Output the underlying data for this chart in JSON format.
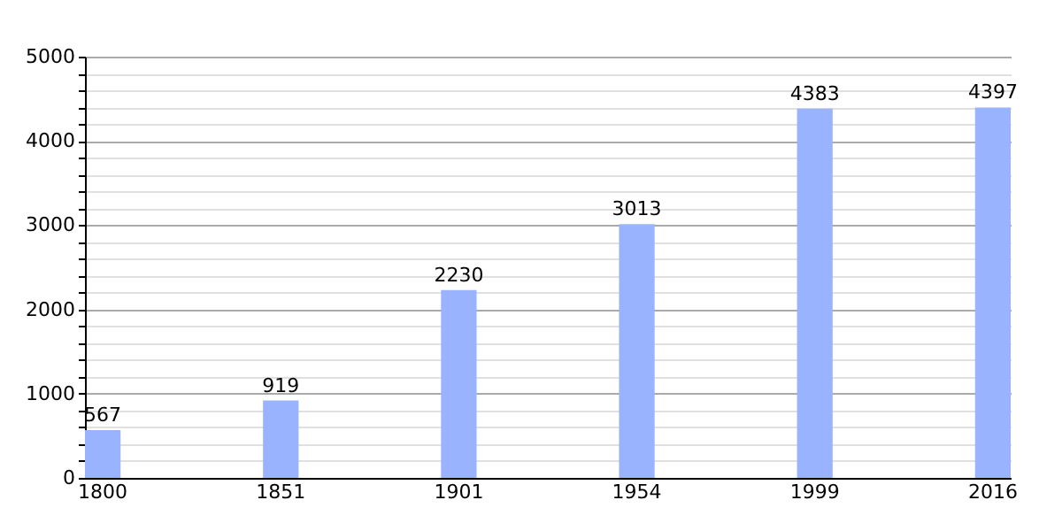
{
  "chart_data": {
    "type": "bar",
    "categories": [
      "1800",
      "1851",
      "1901",
      "1954",
      "1999",
      "2016"
    ],
    "values": [
      567,
      919,
      2230,
      3013,
      4383,
      4397
    ],
    "color": "#99b3ff",
    "ylim": [
      0,
      5000
    ],
    "yticks": [
      0,
      {
        "value": 200,
        "label": null
      },
      {
        "value": 400,
        "label": null
      },
      {
        "value": 600,
        "label": null
      },
      {
        "value": 800,
        "label": null
      },
      1000,
      {
        "value": 1200,
        "label": null
      },
      {
        "value": 1400,
        "label": null
      },
      {
        "value": 1600,
        "label": null
      },
      {
        "value": 1800,
        "label": null
      },
      2000,
      {
        "value": 2200,
        "label": null
      },
      {
        "value": 2400,
        "label": null
      },
      {
        "value": 2600,
        "label": null
      },
      {
        "value": 2800,
        "label": null
      },
      3000,
      {
        "value": 3200,
        "label": null
      },
      {
        "value": 3400,
        "label": null
      },
      {
        "value": 3600,
        "label": null
      },
      {
        "value": 3800,
        "label": null
      },
      4000,
      {
        "value": 4200,
        "label": null
      },
      {
        "value": 4400,
        "label": null
      },
      {
        "value": 4600,
        "label": null
      },
      {
        "value": 4800,
        "label": null
      },
      5000
    ],
    "grid": "y",
    "data_labels": true
  }
}
